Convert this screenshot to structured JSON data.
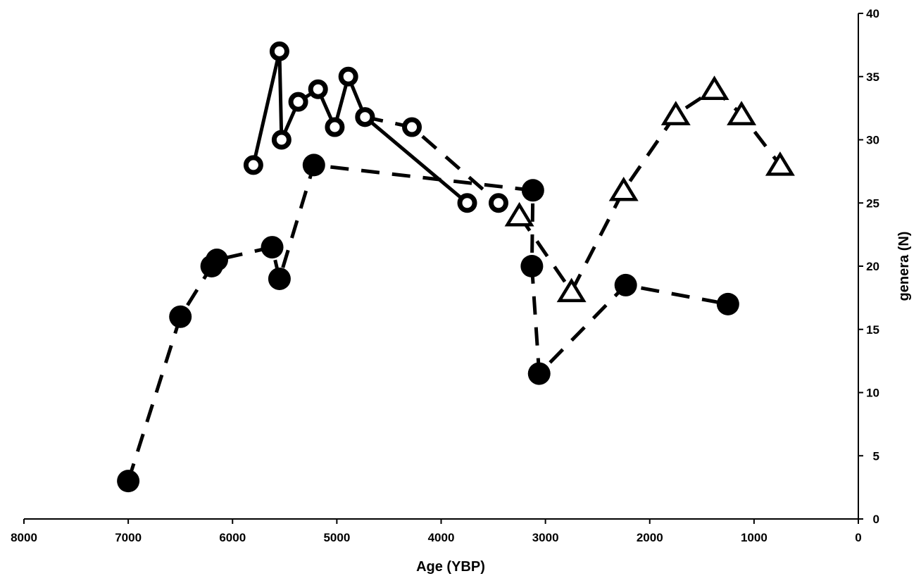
{
  "chart_data": {
    "type": "line",
    "title": "",
    "xlabel": "Age (YBP)",
    "ylabel": "genera (N)",
    "xlim": [
      8000,
      0
    ],
    "ylim": [
      0,
      40
    ],
    "x_reversed": true,
    "y_axis_side": "right",
    "grid": false,
    "legend": "none",
    "x_ticks": [
      "8000",
      "7000",
      "6000",
      "5000",
      "4000",
      "3000",
      "2000",
      "1000",
      "0"
    ],
    "y_ticks": [
      "0",
      "5",
      "10",
      "15",
      "20",
      "25",
      "30",
      "35",
      "40"
    ],
    "series": [
      {
        "marker": "open-circle",
        "line_style": "solid",
        "color": "#000000",
        "x": [
          5800,
          5550,
          5530,
          5370,
          5180,
          5020,
          4890,
          4730,
          3750
        ],
        "y": [
          28,
          37,
          30,
          33,
          34,
          31,
          35,
          31.8,
          25
        ]
      },
      {
        "marker": "open-circle",
        "line_style": "dashed",
        "color": "#000000",
        "x": [
          4730,
          4280,
          3450
        ],
        "y": [
          31.8,
          31,
          25
        ]
      },
      {
        "marker": "filled-circle",
        "line_style": "dashed",
        "color": "#000000",
        "x": [
          7000,
          6500,
          6200,
          6150,
          5620,
          5550,
          5220,
          3120,
          3130,
          3060,
          2230,
          1250
        ],
        "y": [
          3,
          16,
          20,
          20.5,
          21.5,
          19,
          28,
          26,
          20,
          11.5,
          18.5,
          17
        ]
      },
      {
        "marker": "open-triangle",
        "line_style": "dashed",
        "color": "#000000",
        "x": [
          3250,
          2750,
          2250,
          1750,
          1380,
          1120,
          750
        ],
        "y": [
          24,
          18,
          26,
          32,
          34,
          32,
          28
        ]
      }
    ]
  }
}
